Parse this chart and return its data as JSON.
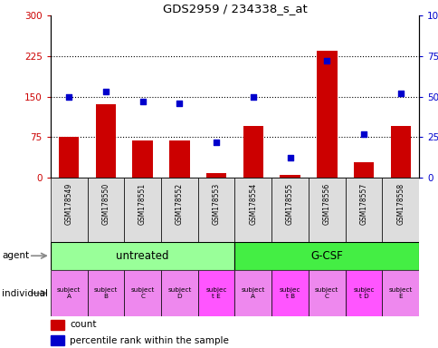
{
  "title": "GDS2959 / 234338_s_at",
  "samples": [
    "GSM178549",
    "GSM178550",
    "GSM178551",
    "GSM178552",
    "GSM178553",
    "GSM178554",
    "GSM178555",
    "GSM178556",
    "GSM178557",
    "GSM178558"
  ],
  "counts": [
    75,
    135,
    68,
    68,
    8,
    95,
    5,
    235,
    28,
    95
  ],
  "percentile_ranks": [
    50,
    53,
    47,
    46,
    22,
    50,
    12,
    72,
    27,
    52
  ],
  "bar_color": "#CC0000",
  "dot_color": "#0000CC",
  "ylim_left": [
    0,
    300
  ],
  "ylim_right": [
    0,
    100
  ],
  "yticks_left": [
    0,
    75,
    150,
    225,
    300
  ],
  "yticks_right": [
    0,
    25,
    50,
    75,
    100
  ],
  "ytick_labels_left": [
    "0",
    "75",
    "150",
    "225",
    "300"
  ],
  "ytick_labels_right": [
    "0",
    "25",
    "50",
    "75",
    "100%"
  ],
  "color_untreated": "#99FF99",
  "color_gcsf": "#44EE44",
  "color_indiv_normal": "#EE88EE",
  "color_indiv_highlight": "#FF55FF",
  "color_sample_bg": "#DDDDDD",
  "indiv_labels": [
    "subject\nA",
    "subject\nB",
    "subject\nC",
    "subject\nD",
    "subjec\nt E",
    "subject\nA",
    "subjec\nt B",
    "subject\nC",
    "subjec\nt D",
    "subject\nE"
  ],
  "indiv_highlight": [
    false,
    false,
    false,
    false,
    true,
    false,
    true,
    false,
    true,
    false
  ],
  "agent_spans": [
    [
      0,
      4,
      "untreated"
    ],
    [
      5,
      9,
      "G-CSF"
    ]
  ]
}
